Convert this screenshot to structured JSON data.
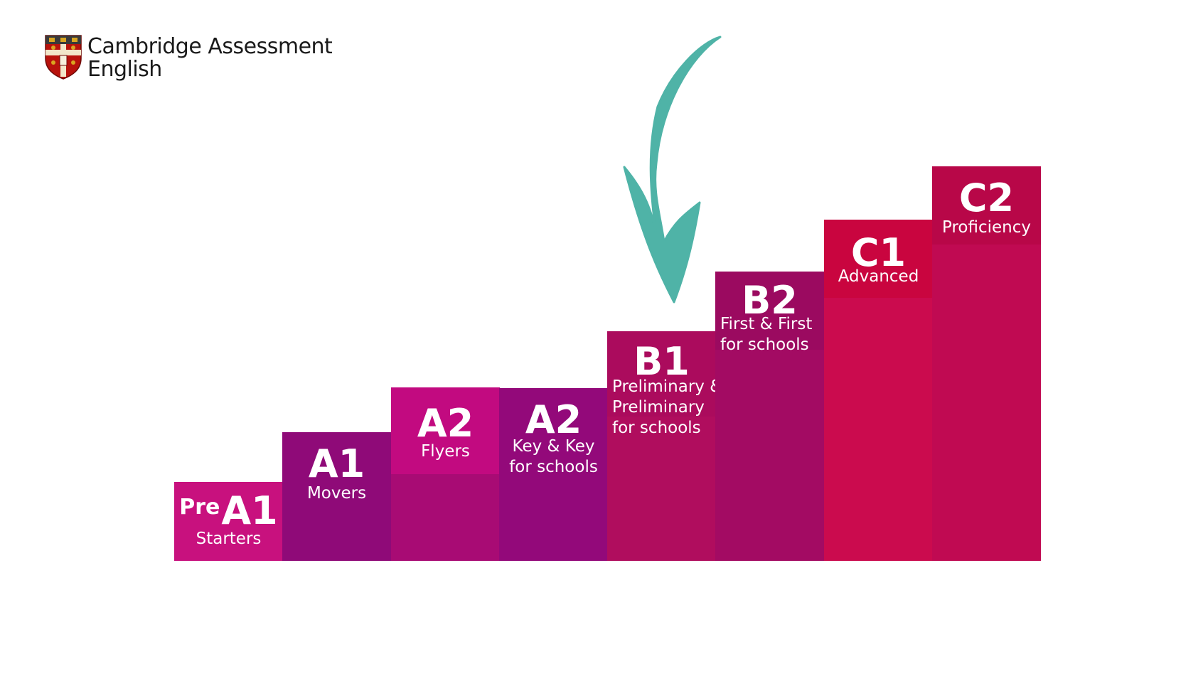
{
  "logo": {
    "line1": "Cambridge Assessment",
    "line2": "English",
    "icon": "cambridge-shield-icon"
  },
  "arrow": {
    "icon": "curved-arrow-down-icon",
    "color": "#4fb3a7"
  },
  "steps": [
    {
      "pre": "Pre",
      "code": "A1",
      "label": [
        "Starters"
      ],
      "cap_color": "#c8117e",
      "body_color": "#c8117e"
    },
    {
      "pre": "",
      "code": "A1",
      "label": [
        "Movers"
      ],
      "cap_color": "#8f0a78",
      "body_color": "#8f0a78"
    },
    {
      "pre": "",
      "code": "A2",
      "label": [
        "Flyers"
      ],
      "cap_color": "#c20a80",
      "body_color": "#a80b74"
    },
    {
      "pre": "",
      "code": "A2",
      "label": [
        "Key & Key",
        "for schools"
      ],
      "cap_color": "#93097a",
      "body_color": "#93097a"
    },
    {
      "pre": "",
      "code": "B1",
      "label": [
        "Preliminary &",
        "Preliminary",
        "for schools"
      ],
      "cap_color": "#ab0b5d",
      "body_color": "#b00d5e"
    },
    {
      "pre": "",
      "code": "B2",
      "label": [
        "First & First",
        "for schools"
      ],
      "cap_color": "#9b0a60",
      "body_color": "#a30b63"
    },
    {
      "pre": "",
      "code": "C1",
      "label": [
        "Advanced"
      ],
      "cap_color": "#c9053f",
      "body_color": "#cb0b4e"
    },
    {
      "pre": "",
      "code": "C2",
      "label": [
        "Proficiency"
      ],
      "cap_color": "#b80748",
      "body_color": "#c00a52"
    }
  ]
}
